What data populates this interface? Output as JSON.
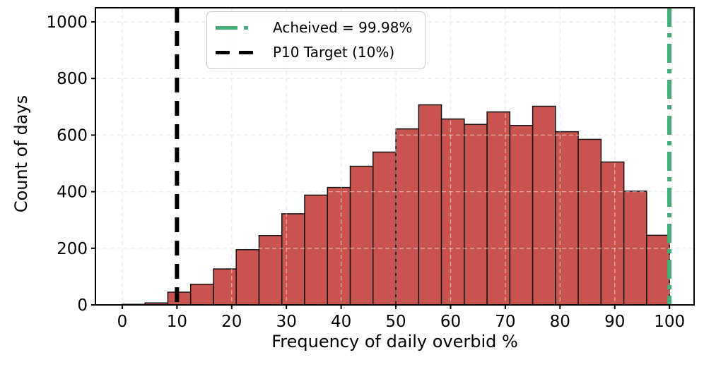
{
  "chart_data": {
    "type": "bar",
    "title": "",
    "xlabel": "Frequency of daily overbid %",
    "ylabel": "Count of days",
    "bin_edges": [
      0,
      4.17,
      8.33,
      12.5,
      16.67,
      20.83,
      25,
      29.17,
      33.33,
      37.5,
      41.67,
      45.83,
      50,
      54.17,
      58.33,
      62.5,
      66.67,
      70.83,
      75,
      79.17,
      83.33,
      87.5,
      91.67,
      95.83,
      100
    ],
    "counts": [
      2,
      7,
      45,
      73,
      127,
      195,
      245,
      322,
      388,
      415,
      490,
      540,
      622,
      707,
      657,
      638,
      682,
      634,
      702,
      612,
      585,
      505,
      402,
      246
    ],
    "x_ticks": [
      0,
      10,
      20,
      30,
      40,
      50,
      60,
      70,
      80,
      90,
      100
    ],
    "y_ticks": [
      0,
      200,
      400,
      600,
      800,
      1000
    ],
    "xlim": [
      -4.9,
      104.5
    ],
    "ylim": [
      0,
      1050
    ],
    "grid": true,
    "legend_position": "upper-left-inside",
    "lines": [
      {
        "name": "achieved",
        "x": 99.98,
        "style": "dashdot",
        "color": "#45AD78",
        "width": 6
      },
      {
        "name": "target",
        "x": 10,
        "style": "dashed",
        "color": "#000000",
        "width": 6
      }
    ],
    "legend": [
      {
        "label": "Acheived = 99.98%",
        "color": "#45AD78",
        "style": "dashdot"
      },
      {
        "label": "P10 Target (10%)",
        "color": "#000000",
        "style": "dashed"
      }
    ],
    "colors": {
      "bar_fill": "#C9544F",
      "bar_edge": "#141414",
      "grid": "#dcdcdc",
      "spine": "#000000",
      "tick_label": "#000000"
    }
  }
}
